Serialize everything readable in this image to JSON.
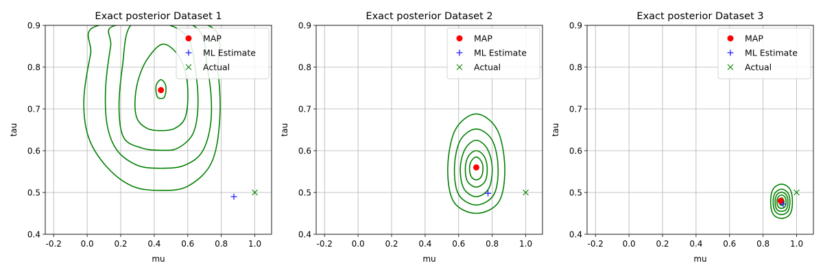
{
  "chart_data": [
    {
      "type": "scatter",
      "title": "Exact posterior Dataset 1",
      "xlabel": "mu",
      "ylabel": "tau",
      "xlim": [
        -0.25,
        1.1
      ],
      "ylim": [
        0.4,
        0.9
      ],
      "xticks": [
        "-0.2",
        "0.0",
        "0.2",
        "0.4",
        "0.6",
        "0.8",
        "1.0"
      ],
      "yticks": [
        "0.4",
        "0.5",
        "0.6",
        "0.7",
        "0.8",
        "0.9"
      ],
      "grid": true,
      "legend_position": "top-right",
      "contour_color": "#008000",
      "contours": [
        [
          [
            0.44,
            0.77
          ],
          [
            0.465,
            0.76
          ],
          [
            0.47,
            0.745
          ],
          [
            0.46,
            0.728
          ],
          [
            0.44,
            0.725
          ],
          [
            0.42,
            0.728
          ],
          [
            0.41,
            0.745
          ],
          [
            0.415,
            0.76
          ]
        ],
        [
          [
            0.45,
            0.855
          ],
          [
            0.54,
            0.83
          ],
          [
            0.59,
            0.78
          ],
          [
            0.6,
            0.72
          ],
          [
            0.58,
            0.675
          ],
          [
            0.52,
            0.653
          ],
          [
            0.44,
            0.648
          ],
          [
            0.36,
            0.653
          ],
          [
            0.3,
            0.675
          ],
          [
            0.285,
            0.715
          ],
          [
            0.305,
            0.77
          ],
          [
            0.36,
            0.82
          ]
        ],
        [
          [
            0.45,
            0.905
          ],
          [
            0.6,
            0.87
          ],
          [
            0.65,
            0.78
          ],
          [
            0.66,
            0.7
          ],
          [
            0.63,
            0.64
          ],
          [
            0.54,
            0.606
          ],
          [
            0.44,
            0.601
          ],
          [
            0.33,
            0.606
          ],
          [
            0.22,
            0.63
          ],
          [
            0.19,
            0.7
          ],
          [
            0.21,
            0.8
          ],
          [
            0.26,
            0.9
          ]
        ],
        [
          [
            0.63,
            0.9
          ],
          [
            0.72,
            0.79
          ],
          [
            0.74,
            0.68
          ],
          [
            0.69,
            0.6
          ],
          [
            0.58,
            0.565
          ],
          [
            0.44,
            0.558
          ],
          [
            0.3,
            0.565
          ],
          [
            0.18,
            0.6
          ],
          [
            0.12,
            0.66
          ],
          [
            0.11,
            0.75
          ],
          [
            0.14,
            0.85
          ],
          [
            0.17,
            0.9
          ]
        ],
        [
          [
            0.72,
            0.9
          ],
          [
            0.78,
            0.79
          ],
          [
            0.79,
            0.67
          ],
          [
            0.74,
            0.57
          ],
          [
            0.6,
            0.515
          ],
          [
            0.44,
            0.505
          ],
          [
            0.27,
            0.515
          ],
          [
            0.12,
            0.56
          ],
          [
            0.01,
            0.63
          ],
          [
            -0.02,
            0.72
          ],
          [
            0.02,
            0.83
          ],
          [
            0.07,
            0.9
          ]
        ]
      ],
      "series": [
        {
          "name": "MAP",
          "marker": "circle",
          "color": "#ff0000",
          "x": 0.44,
          "y": 0.745
        },
        {
          "name": "ML Estimate",
          "marker": "plus",
          "color": "#0000ff",
          "x": 0.875,
          "y": 0.49
        },
        {
          "name": "Actual",
          "marker": "x",
          "color": "#008000",
          "x": 1.0,
          "y": 0.5
        }
      ]
    },
    {
      "type": "scatter",
      "title": "Exact posterior Dataset 2",
      "xlabel": "mu",
      "ylabel": "tau",
      "xlim": [
        -0.25,
        1.1
      ],
      "ylim": [
        0.4,
        0.9
      ],
      "xticks": [
        "-0.2",
        "0.0",
        "0.2",
        "0.4",
        "0.6",
        "0.8",
        "1.0"
      ],
      "yticks": [
        "0.4",
        "0.5",
        "0.6",
        "0.7",
        "0.8",
        "0.9"
      ],
      "grid": true,
      "legend_position": "top-right",
      "contour_color": "#008000",
      "contours": [
        [
          [
            0.705,
            0.585
          ],
          [
            0.735,
            0.575
          ],
          [
            0.745,
            0.558
          ],
          [
            0.735,
            0.538
          ],
          [
            0.705,
            0.53
          ],
          [
            0.675,
            0.538
          ],
          [
            0.665,
            0.558
          ],
          [
            0.675,
            0.575
          ]
        ],
        [
          [
            0.705,
            0.6
          ],
          [
            0.75,
            0.588
          ],
          [
            0.77,
            0.56
          ],
          [
            0.758,
            0.527
          ],
          [
            0.705,
            0.513
          ],
          [
            0.652,
            0.527
          ],
          [
            0.64,
            0.56
          ],
          [
            0.66,
            0.588
          ]
        ],
        [
          [
            0.705,
            0.625
          ],
          [
            0.77,
            0.605
          ],
          [
            0.8,
            0.56
          ],
          [
            0.78,
            0.51
          ],
          [
            0.705,
            0.49
          ],
          [
            0.63,
            0.51
          ],
          [
            0.61,
            0.56
          ],
          [
            0.64,
            0.605
          ]
        ],
        [
          [
            0.705,
            0.652
          ],
          [
            0.8,
            0.625
          ],
          [
            0.835,
            0.56
          ],
          [
            0.81,
            0.495
          ],
          [
            0.705,
            0.47
          ],
          [
            0.6,
            0.495
          ],
          [
            0.575,
            0.56
          ],
          [
            0.61,
            0.625
          ]
        ],
        [
          [
            0.705,
            0.688
          ],
          [
            0.83,
            0.65
          ],
          [
            0.875,
            0.56
          ],
          [
            0.84,
            0.478
          ],
          [
            0.705,
            0.45
          ],
          [
            0.57,
            0.478
          ],
          [
            0.535,
            0.56
          ],
          [
            0.58,
            0.65
          ]
        ]
      ],
      "series": [
        {
          "name": "MAP",
          "marker": "circle",
          "color": "#ff0000",
          "x": 0.705,
          "y": 0.56
        },
        {
          "name": "ML Estimate",
          "marker": "plus",
          "color": "#0000ff",
          "x": 0.775,
          "y": 0.498
        },
        {
          "name": "Actual",
          "marker": "x",
          "color": "#008000",
          "x": 1.0,
          "y": 0.5
        }
      ]
    },
    {
      "type": "scatter",
      "title": "Exact posterior Dataset 3",
      "xlabel": "mu",
      "ylabel": "tau",
      "xlim": [
        -0.25,
        1.1
      ],
      "ylim": [
        0.4,
        0.9
      ],
      "xticks": [
        "-0.2",
        "0.0",
        "0.2",
        "0.4",
        "0.6",
        "0.8",
        "1.0"
      ],
      "yticks": [
        "0.4",
        "0.5",
        "0.6",
        "0.7",
        "0.8",
        "0.9"
      ],
      "grid": true,
      "legend_position": "top-right",
      "contour_color": "#008000",
      "contours": [
        [
          [
            0.91,
            0.487
          ],
          [
            0.92,
            0.484
          ],
          [
            0.925,
            0.478
          ],
          [
            0.92,
            0.472
          ],
          [
            0.91,
            0.469
          ],
          [
            0.9,
            0.472
          ],
          [
            0.895,
            0.478
          ],
          [
            0.9,
            0.484
          ]
        ],
        [
          [
            0.91,
            0.494
          ],
          [
            0.93,
            0.489
          ],
          [
            0.937,
            0.478
          ],
          [
            0.93,
            0.466
          ],
          [
            0.91,
            0.462
          ],
          [
            0.89,
            0.466
          ],
          [
            0.883,
            0.478
          ],
          [
            0.89,
            0.489
          ]
        ],
        [
          [
            0.91,
            0.501
          ],
          [
            0.939,
            0.494
          ],
          [
            0.948,
            0.478
          ],
          [
            0.939,
            0.46
          ],
          [
            0.91,
            0.455
          ],
          [
            0.881,
            0.46
          ],
          [
            0.872,
            0.478
          ],
          [
            0.881,
            0.494
          ]
        ],
        [
          [
            0.91,
            0.508
          ],
          [
            0.948,
            0.499
          ],
          [
            0.96,
            0.478
          ],
          [
            0.948,
            0.455
          ],
          [
            0.91,
            0.447
          ],
          [
            0.872,
            0.455
          ],
          [
            0.86,
            0.478
          ],
          [
            0.872,
            0.499
          ]
        ],
        [
          [
            0.91,
            0.52
          ],
          [
            0.96,
            0.508
          ],
          [
            0.975,
            0.478
          ],
          [
            0.96,
            0.448
          ],
          [
            0.91,
            0.438
          ],
          [
            0.86,
            0.448
          ],
          [
            0.845,
            0.478
          ],
          [
            0.86,
            0.508
          ]
        ]
      ],
      "series": [
        {
          "name": "MAP",
          "marker": "circle",
          "color": "#ff0000",
          "x": 0.905,
          "y": 0.48
        },
        {
          "name": "ML Estimate",
          "marker": "plus",
          "color": "#0000ff",
          "x": 0.92,
          "y": 0.472
        },
        {
          "name": "Actual",
          "marker": "x",
          "color": "#008000",
          "x": 1.0,
          "y": 0.5
        }
      ]
    }
  ]
}
